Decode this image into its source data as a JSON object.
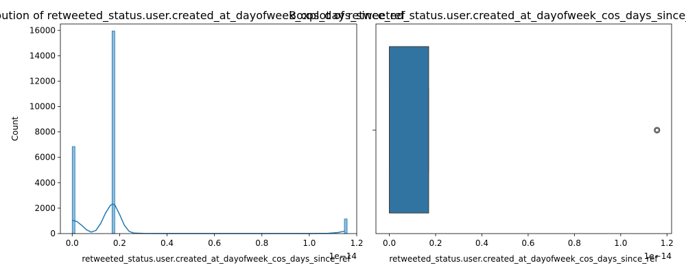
{
  "chart_data": [
    {
      "type": "bar",
      "title": "Distribution of retweeted_status.user.created_at_dayofweek_cos_days_since_ref",
      "xlabel": "retweeted_status.user.created_at_dayofweek_cos_days_since_ref",
      "ylabel": "Count",
      "x_offset_label": "1e−14",
      "xlim": [
        -0.05,
        1.2
      ],
      "ylim": [
        0,
        16500
      ],
      "xticks": [
        0.0,
        0.2,
        0.4,
        0.6,
        0.8,
        1.0,
        1.2
      ],
      "xtick_labels": [
        "0.0",
        "0.2",
        "0.4",
        "0.6",
        "0.8",
        "1.0",
        "1.2"
      ],
      "yticks": [
        0,
        2000,
        4000,
        6000,
        8000,
        10000,
        12000,
        14000,
        16000
      ],
      "ytick_labels": [
        "0",
        "2000",
        "4000",
        "6000",
        "8000",
        "10000",
        "12000",
        "14000",
        "16000"
      ],
      "bars": [
        {
          "x": 0.0,
          "width": 0.0116,
          "count": 6850
        },
        {
          "x": 0.168,
          "width": 0.0116,
          "count": 15950
        },
        {
          "x": 1.148,
          "width": 0.0116,
          "count": 1150
        }
      ],
      "kde": [
        [
          0.0,
          1050
        ],
        [
          0.02,
          950
        ],
        [
          0.04,
          650
        ],
        [
          0.06,
          300
        ],
        [
          0.08,
          120
        ],
        [
          0.1,
          250
        ],
        [
          0.12,
          800
        ],
        [
          0.14,
          1600
        ],
        [
          0.16,
          2200
        ],
        [
          0.17,
          2330
        ],
        [
          0.18,
          2250
        ],
        [
          0.2,
          1500
        ],
        [
          0.22,
          650
        ],
        [
          0.24,
          180
        ],
        [
          0.26,
          40
        ],
        [
          0.3,
          10
        ],
        [
          0.4,
          5
        ],
        [
          0.6,
          5
        ],
        [
          0.8,
          5
        ],
        [
          1.0,
          5
        ],
        [
          1.08,
          20
        ],
        [
          1.12,
          80
        ],
        [
          1.15,
          200
        ]
      ],
      "colors": {
        "bar": "#1f77b4",
        "kde": "#1f77b4"
      }
    },
    {
      "type": "box",
      "title": "Boxplot of retweeted_status.user.created_at_dayofweek_cos_days_since_ref",
      "xlabel": "retweeted_status.user.created_at_dayofweek_cos_days_since_ref",
      "x_offset_label": "1e−14",
      "xlim": [
        -0.058,
        1.22
      ],
      "xticks": [
        0.0,
        0.2,
        0.4,
        0.6,
        0.8,
        1.0,
        1.2
      ],
      "xtick_labels": [
        "0.0",
        "0.2",
        "0.4",
        "0.6",
        "0.8",
        "1.0",
        "1.2"
      ],
      "box": {
        "whisker_low": 0.0,
        "q1": 0.0,
        "median": 0.0,
        "q3": 0.17,
        "whisker_high": 0.17
      },
      "outliers": [
        1.157
      ],
      "colors": {
        "box": "#3274a1",
        "edge": "#3d3d3d"
      }
    }
  ]
}
